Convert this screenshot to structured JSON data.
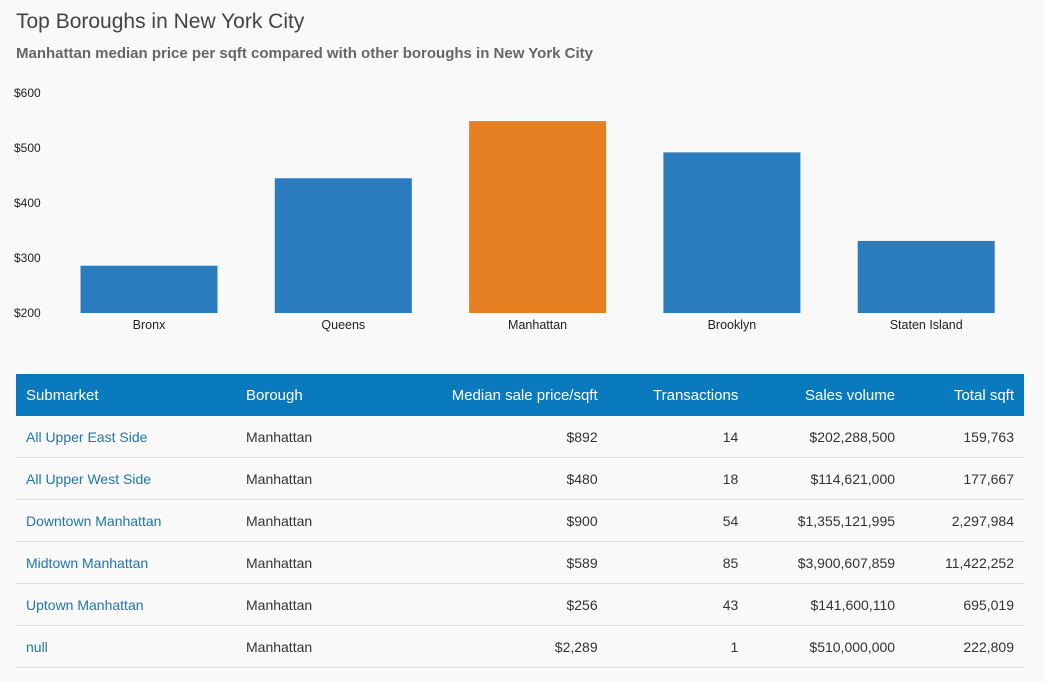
{
  "title": "Top Boroughs in New York City",
  "subtitle": "Manhattan median price per sqft compared with other boroughs in New York City",
  "chart_data": {
    "type": "bar",
    "categories": [
      "Bronx",
      "Queens",
      "Manhattan",
      "Brooklyn",
      "Staten Island"
    ],
    "values": [
      286,
      445,
      549,
      492,
      331
    ],
    "highlight": "Manhattan",
    "colors": {
      "default": "#2b7bbf",
      "highlight": "#e67e22"
    },
    "ylim": [
      200,
      600
    ],
    "yticks": [
      "$200",
      "$300",
      "$400",
      "$500",
      "$600"
    ],
    "title": "",
    "xlabel": "",
    "ylabel": ""
  },
  "table": {
    "headers": [
      "Submarket",
      "Borough",
      "Median sale price/sqft",
      "Transactions",
      "Sales volume",
      "Total sqft"
    ],
    "rows": [
      [
        "All Upper East Side",
        "Manhattan",
        "$892",
        "14",
        "$202,288,500",
        "159,763"
      ],
      [
        "All Upper West Side",
        "Manhattan",
        "$480",
        "18",
        "$114,621,000",
        "177,667"
      ],
      [
        "Downtown Manhattan",
        "Manhattan",
        "$900",
        "54",
        "$1,355,121,995",
        "2,297,984"
      ],
      [
        "Midtown Manhattan",
        "Manhattan",
        "$589",
        "85",
        "$3,900,607,859",
        "11,422,252"
      ],
      [
        "Uptown Manhattan",
        "Manhattan",
        "$256",
        "43",
        "$141,600,110",
        "695,019"
      ],
      [
        "null",
        "Manhattan",
        "$2,289",
        "1",
        "$510,000,000",
        "222,809"
      ]
    ]
  }
}
